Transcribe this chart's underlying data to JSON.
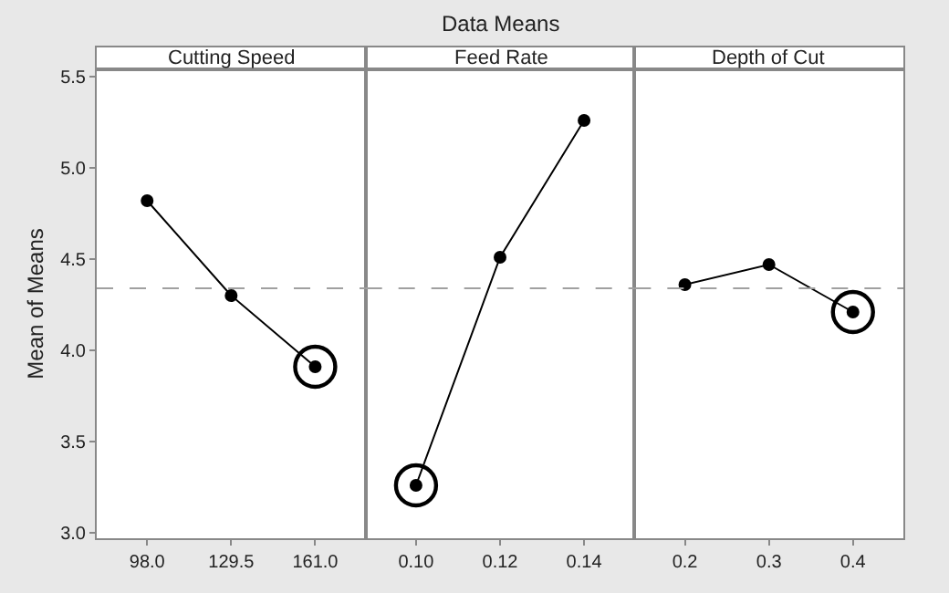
{
  "chart_data": [
    {
      "type": "line",
      "subtitle": "Cutting Speed",
      "ylabel": "Mean of Means",
      "categories": [
        "98.0",
        "129.5",
        "161.0"
      ],
      "series": [
        {
          "color": "#000000",
          "values": [
            4.82,
            4.3,
            3.91
          ]
        },
        {
          "type": "scatter",
          "color": "#000000",
          "values": [
            null,
            null,
            3.91
          ]
        }
      ],
      "ylim": [
        2.97,
        5.54
      ],
      "yticks": [
        {
          "value": 3.0,
          "label": "3.0"
        },
        {
          "value": 3.5,
          "label": "3.5"
        },
        {
          "value": 4.0,
          "label": "4.0"
        },
        {
          "value": 4.5,
          "label": "4.5"
        },
        {
          "value": 5.0,
          "label": "5.0"
        },
        {
          "value": 5.5,
          "label": "5.5"
        }
      ],
      "ref_lines": [
        {
          "axis": "y",
          "value": 4.34,
          "color": "#a0a0a0",
          "line_style": "dashed"
        }
      ],
      "marker": "circle"
    },
    {
      "type": "line",
      "title": "Data Means",
      "subtitle": "Feed Rate",
      "categories": [
        "0.10",
        "0.12",
        "0.14"
      ],
      "series": [
        {
          "color": "#000000",
          "values": [
            3.26,
            4.51,
            5.26
          ]
        },
        {
          "type": "scatter",
          "color": "#000000",
          "values": [
            3.26,
            null,
            null
          ]
        }
      ],
      "ylim": [
        2.97,
        5.54
      ],
      "tick_labels": "x",
      "ref_lines": [
        {
          "axis": "y",
          "value": 4.34,
          "color": "#a0a0a0",
          "line_style": "dashed"
        }
      ],
      "marker": "circle"
    },
    {
      "type": "line",
      "subtitle": "Depth of Cut",
      "categories": [
        "0.2",
        "0.3",
        "0.4"
      ],
      "series": [
        {
          "color": "#000000",
          "values": [
            4.36,
            4.47,
            4.21
          ]
        },
        {
          "type": "scatter",
          "color": "#000000",
          "values": [
            null,
            null,
            4.21
          ]
        }
      ],
      "ylim": [
        2.97,
        5.54
      ],
      "tick_labels": "x",
      "ref_lines": [
        {
          "axis": "y",
          "value": 4.34,
          "color": "#a0a0a0",
          "line_style": "dashed"
        }
      ],
      "marker": "circle"
    }
  ]
}
